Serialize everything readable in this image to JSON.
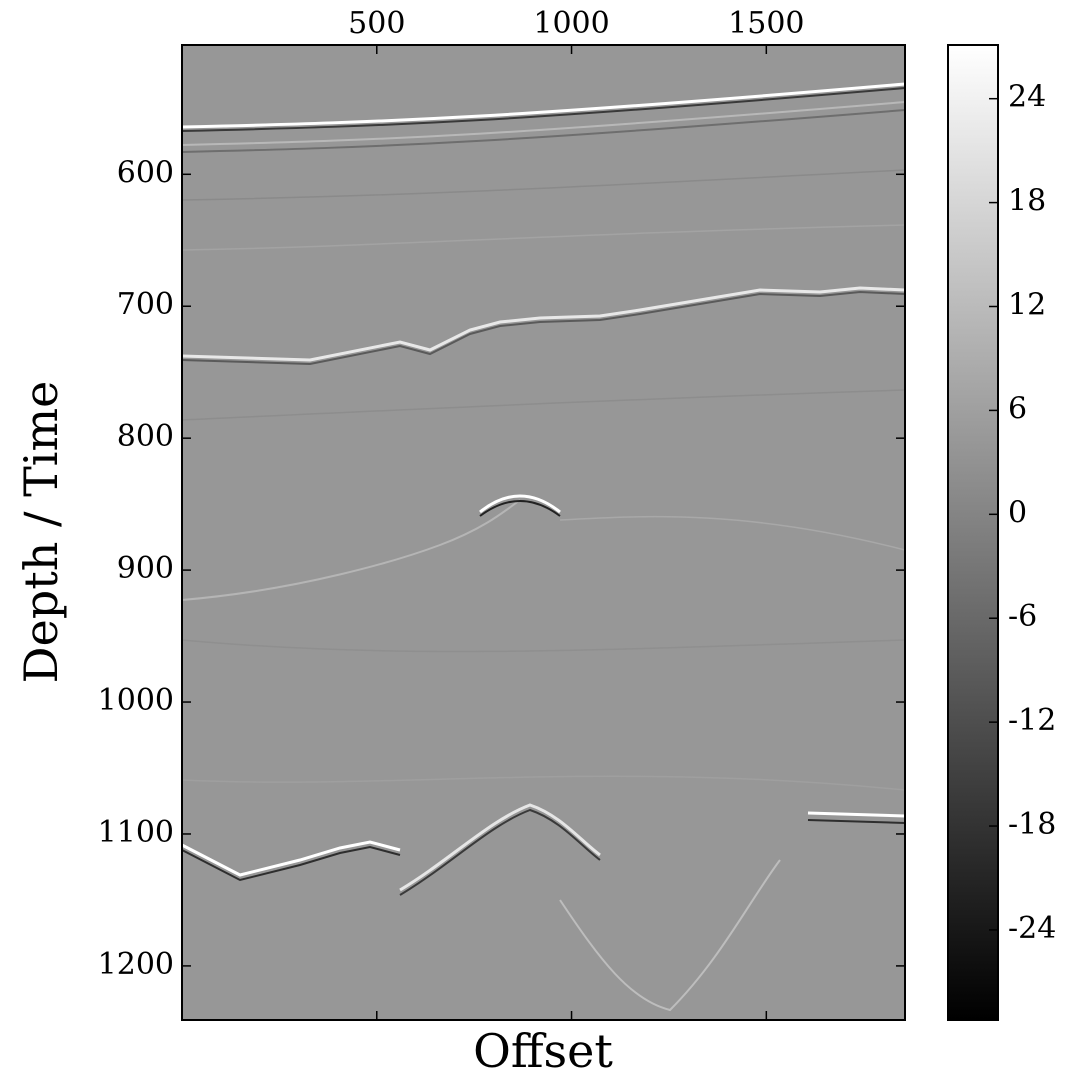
{
  "chart_data": {
    "type": "image",
    "xlabel": "Offset",
    "ylabel": "Depth / Time",
    "xlim": [
      0,
      1856
    ],
    "xticks": [
      500,
      1000,
      1500
    ],
    "ylim": [
      1241,
      502
    ],
    "yticks": [
      600,
      700,
      800,
      900,
      1000,
      1100,
      1200
    ],
    "colormap": [
      "#000000",
      "#ffffff"
    ],
    "colorbar": {
      "clim": [
        -29.2,
        27.1
      ],
      "ticks": [
        -24,
        -18,
        -12,
        -6,
        0,
        6,
        12,
        18,
        24
      ]
    }
  }
}
